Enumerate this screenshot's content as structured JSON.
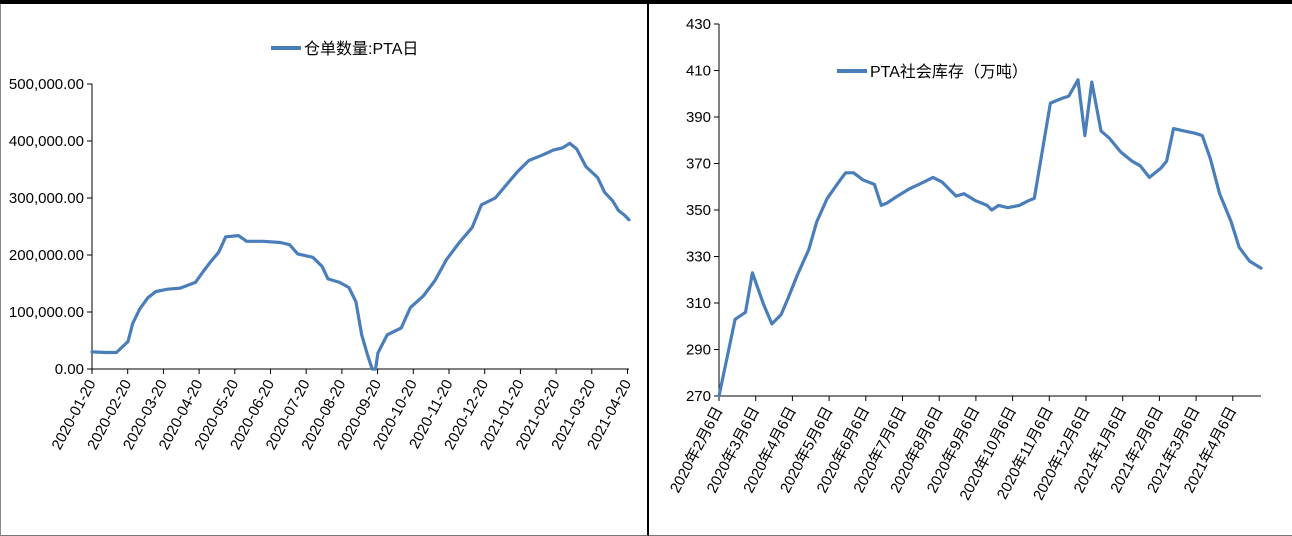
{
  "chart_data": [
    {
      "type": "line",
      "title": "",
      "xlabel": "",
      "ylabel": "",
      "legend": "top-center",
      "grid": false,
      "series": [
        {
          "name": "仓单数量:PTA日",
          "color": "#4a7ebb",
          "points": [
            [
              "2020-01-20",
              30000
            ],
            [
              "2020-02-01",
              29000
            ],
            [
              "2020-02-10",
              29000
            ],
            [
              "2020-02-20",
              48000
            ],
            [
              "2020-02-24",
              80000
            ],
            [
              "2020-03-01",
              105000
            ],
            [
              "2020-03-08",
              125000
            ],
            [
              "2020-03-15",
              136000
            ],
            [
              "2020-03-25",
              140000
            ],
            [
              "2020-04-05",
              142000
            ],
            [
              "2020-04-18",
              152000
            ],
            [
              "2020-04-25",
              172000
            ],
            [
              "2020-05-01",
              188000
            ],
            [
              "2020-05-08",
              205000
            ],
            [
              "2020-05-14",
              232000
            ],
            [
              "2020-05-25",
              234000
            ],
            [
              "2020-06-01",
              224000
            ],
            [
              "2020-06-15",
              224000
            ],
            [
              "2020-06-30",
              222000
            ],
            [
              "2020-07-08",
              218000
            ],
            [
              "2020-07-15",
              202000
            ],
            [
              "2020-07-28",
              196000
            ],
            [
              "2020-08-05",
              180000
            ],
            [
              "2020-08-10",
              158000
            ],
            [
              "2020-08-20",
              152000
            ],
            [
              "2020-08-28",
              143000
            ],
            [
              "2020-09-03",
              118000
            ],
            [
              "2020-09-08",
              60000
            ],
            [
              "2020-09-13",
              25000
            ],
            [
              "2020-09-17",
              0
            ],
            [
              "2020-09-20",
              0
            ],
            [
              "2020-09-22",
              28000
            ],
            [
              "2020-09-30",
              60000
            ],
            [
              "2020-10-12",
              72000
            ],
            [
              "2020-10-20",
              108000
            ],
            [
              "2020-10-31",
              128000
            ],
            [
              "2020-11-10",
              155000
            ],
            [
              "2020-11-20",
              192000
            ],
            [
              "2020-12-01",
              222000
            ],
            [
              "2020-12-12",
              248000
            ],
            [
              "2020-12-20",
              288000
            ],
            [
              "2021-01-01",
              300000
            ],
            [
              "2021-01-10",
              322000
            ],
            [
              "2021-01-20",
              346000
            ],
            [
              "2021-01-30",
              366000
            ],
            [
              "2021-02-10",
              375000
            ],
            [
              "2021-02-20",
              384000
            ],
            [
              "2021-02-28",
              388000
            ],
            [
              "2021-03-06",
              396000
            ],
            [
              "2021-03-12",
              386000
            ],
            [
              "2021-03-20",
              355000
            ],
            [
              "2021-03-30",
              336000
            ],
            [
              "2021-04-05",
              310000
            ],
            [
              "2021-04-12",
              295000
            ],
            [
              "2021-04-17",
              278000
            ],
            [
              "2021-04-22",
              270000
            ],
            [
              "2021-04-26",
              262000
            ]
          ]
        }
      ],
      "xlim": [
        "2020-01-20",
        "2021-04-26"
      ],
      "ylim": [
        0,
        500000
      ],
      "x_tick_labels": [
        "2020-01-20",
        "2020-02-20",
        "2020-03-20",
        "2020-04-20",
        "2020-05-20",
        "2020-06-20",
        "2020-07-20",
        "2020-08-20",
        "2020-09-20",
        "2020-10-20",
        "2020-11-20",
        "2020-12-20",
        "2021-01-20",
        "2021-02-20",
        "2021-03-20",
        "2021-04-20"
      ],
      "y_ticks": [
        0,
        100000,
        200000,
        300000,
        400000,
        500000
      ],
      "y_tick_labels": [
        "0.00",
        "100,000.00",
        "200,000.00",
        "300,000.00",
        "400,000.00",
        "500,000.00"
      ]
    },
    {
      "type": "line",
      "title": "",
      "xlabel": "",
      "ylabel": "",
      "legend": "top-center",
      "grid": false,
      "series": [
        {
          "name": "PTA社会库存（万吨）",
          "color": "#4a7ebb",
          "points": [
            [
              "2020-02-06",
              270
            ],
            [
              "2020-02-20",
              303
            ],
            [
              "2020-02-29",
              306
            ],
            [
              "2020-03-06",
              323
            ],
            [
              "2020-03-16",
              309
            ],
            [
              "2020-03-23",
              301
            ],
            [
              "2020-03-31",
              305
            ],
            [
              "2020-04-06",
              312
            ],
            [
              "2020-04-14",
              322
            ],
            [
              "2020-04-24",
              333
            ],
            [
              "2020-05-01",
              345
            ],
            [
              "2020-05-10",
              355
            ],
            [
              "2020-05-20",
              362
            ],
            [
              "2020-05-26",
              366
            ],
            [
              "2020-06-02",
              366
            ],
            [
              "2020-06-10",
              363
            ],
            [
              "2020-06-20",
              361
            ],
            [
              "2020-06-26",
              352
            ],
            [
              "2020-07-01",
              353
            ],
            [
              "2020-07-10",
              356
            ],
            [
              "2020-07-20",
              359
            ],
            [
              "2020-08-02",
              362
            ],
            [
              "2020-08-10",
              364
            ],
            [
              "2020-08-18",
              362
            ],
            [
              "2020-08-30",
              356
            ],
            [
              "2020-09-06",
              357
            ],
            [
              "2020-09-16",
              354
            ],
            [
              "2020-09-26",
              352
            ],
            [
              "2020-09-30",
              350
            ],
            [
              "2020-10-06",
              352
            ],
            [
              "2020-10-14",
              351
            ],
            [
              "2020-10-24",
              352
            ],
            [
              "2020-11-01",
              354
            ],
            [
              "2020-11-06",
              355
            ],
            [
              "2020-11-20",
              396
            ],
            [
              "2020-11-30",
              398
            ],
            [
              "2020-12-06",
              399
            ],
            [
              "2020-12-14",
              406
            ],
            [
              "2020-12-20",
              382
            ],
            [
              "2020-12-26",
              405
            ],
            [
              "2021-01-03",
              384
            ],
            [
              "2021-01-10",
              381
            ],
            [
              "2021-01-20",
              375
            ],
            [
              "2021-01-30",
              371
            ],
            [
              "2021-02-06",
              369
            ],
            [
              "2021-02-14",
              364
            ],
            [
              "2021-02-24",
              368
            ],
            [
              "2021-03-01",
              371
            ],
            [
              "2021-03-07",
              385
            ],
            [
              "2021-03-16",
              384
            ],
            [
              "2021-03-26",
              383
            ],
            [
              "2021-04-01",
              382
            ],
            [
              "2021-04-08",
              372
            ],
            [
              "2021-04-16",
              357
            ],
            [
              "2021-04-26",
              345
            ],
            [
              "2021-05-03",
              334
            ],
            [
              "2021-05-12",
              328
            ],
            [
              "2021-05-22",
              325
            ]
          ]
        }
      ],
      "xlim": [
        "2020-02-06",
        "2021-05-22"
      ],
      "ylim": [
        270,
        430
      ],
      "x_tick_labels": [
        "2020年2月6日",
        "2020年3月6日",
        "2020年4月6日",
        "2020年5月6日",
        "2020年6月6日",
        "2020年7月6日",
        "2020年8月6日",
        "2020年9月6日",
        "2020年10月6日",
        "2020年11月6日",
        "2020年12月6日",
        "2021年1月6日",
        "2021年2月6日",
        "2021年3月6日",
        "2021年4月6日"
      ],
      "y_ticks": [
        270,
        290,
        310,
        330,
        350,
        370,
        390,
        410,
        430
      ],
      "y_tick_labels": [
        "270",
        "290",
        "310",
        "330",
        "350",
        "370",
        "390",
        "410",
        "430"
      ]
    }
  ]
}
